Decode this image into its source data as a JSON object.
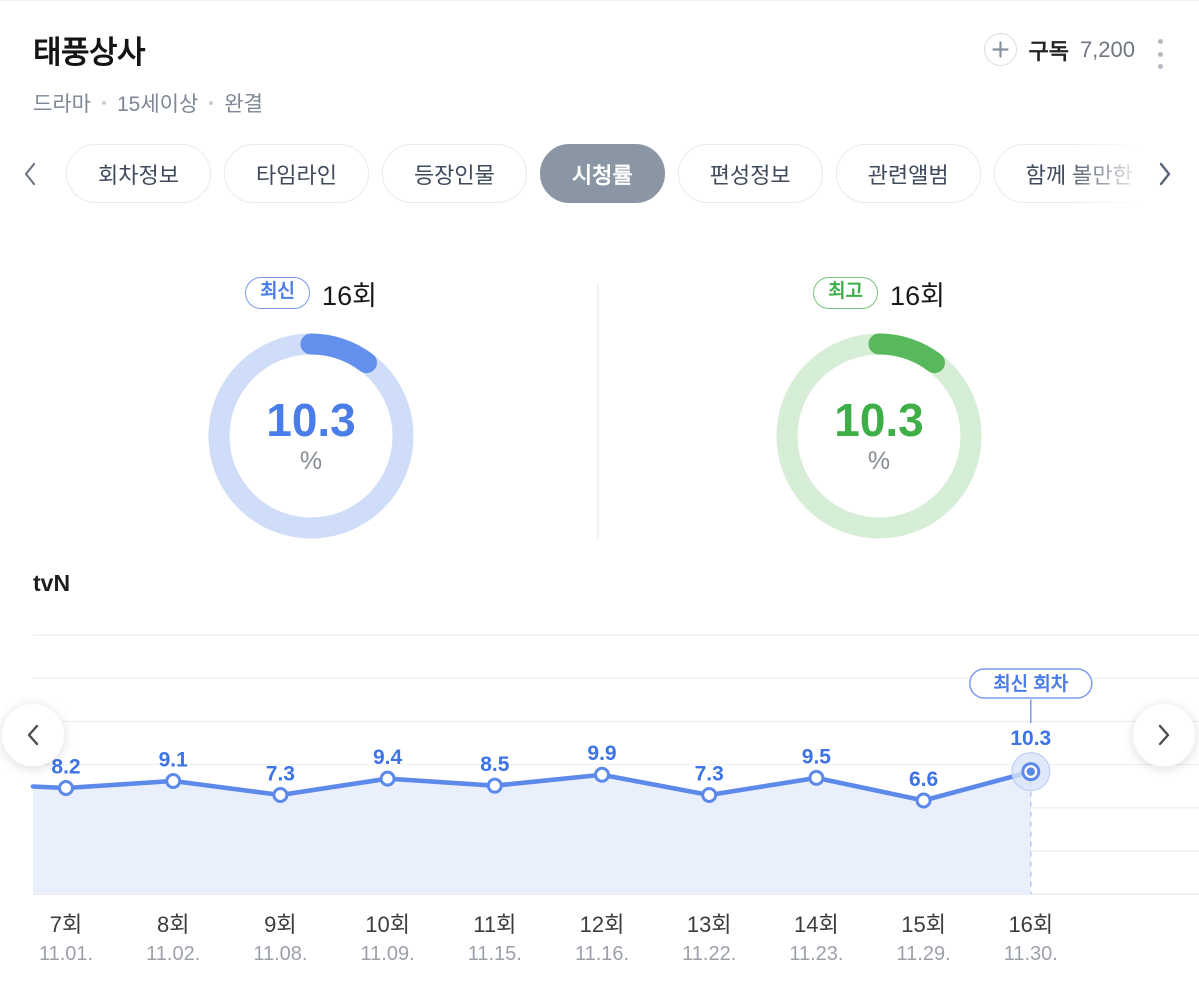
{
  "header": {
    "title": "태풍상사",
    "meta": [
      "드라마",
      "15세이상",
      "완결"
    ],
    "subscribe": {
      "icon": "plus-icon",
      "label": "구독",
      "count": "7,200"
    },
    "menu_icon": "kebab-menu-icon"
  },
  "tabs": {
    "prev_icon": "chevron-left-icon",
    "next_icon": "chevron-right-icon",
    "selected_bg": "#8B96A5",
    "items": [
      {
        "label": "회차정보",
        "selected": false
      },
      {
        "label": "타임라인",
        "selected": false
      },
      {
        "label": "등장인물",
        "selected": false
      },
      {
        "label": "시청률",
        "selected": true
      },
      {
        "label": "편성정보",
        "selected": false
      },
      {
        "label": "관련앨범",
        "selected": false
      },
      {
        "label": "함께 볼만한",
        "selected": false
      }
    ]
  },
  "summary": {
    "latest": {
      "badge": "최신",
      "episode": "16회",
      "value": "10.3",
      "unit": "%",
      "percent": 10.3,
      "accent": "#4A7DE8",
      "arc_color": "#6290EC",
      "track_color": "#CFDDF8",
      "badge_border": "#7B9BEA"
    },
    "best": {
      "badge": "최고",
      "episode": "16회",
      "value": "10.3",
      "unit": "%",
      "percent": 10.3,
      "accent": "#3EAF47",
      "arc_color": "#58B85C",
      "track_color": "#D6EDD6",
      "badge_border": "#77C47B"
    }
  },
  "channel": "tvN",
  "chart_data": {
    "type": "line",
    "categories": [
      "7회",
      "8회",
      "9회",
      "10회",
      "11회",
      "12회",
      "13회",
      "14회",
      "15회",
      "16회"
    ],
    "dates": [
      "11.01.",
      "11.02.",
      "11.08.",
      "11.09.",
      "11.15.",
      "11.16.",
      "11.22.",
      "11.23.",
      "11.29.",
      "11.30."
    ],
    "series": [
      {
        "name": "시청률",
        "values": [
          8.2,
          9.1,
          7.3,
          9.4,
          8.5,
          9.9,
          7.3,
          9.5,
          6.6,
          10.3
        ]
      }
    ],
    "unit": "%",
    "latest_badge": "최신 회차",
    "grid": true,
    "legend": "none",
    "colors": {
      "line": "#5C89EA",
      "label": "#3D73E6",
      "area": "#E9EFFB",
      "dashed": "#B9CDF2",
      "grid": "#EFF1F3",
      "grid_bottom": "#E8EAED",
      "axis_episode": "#3C3C3C",
      "axis_date": "#9CA1A9",
      "halo_fill": "#D7E3F8",
      "halo_stroke": "#B4C9F1",
      "badge": "#4A7DE8",
      "badge_border": "#7B9BEA"
    }
  }
}
